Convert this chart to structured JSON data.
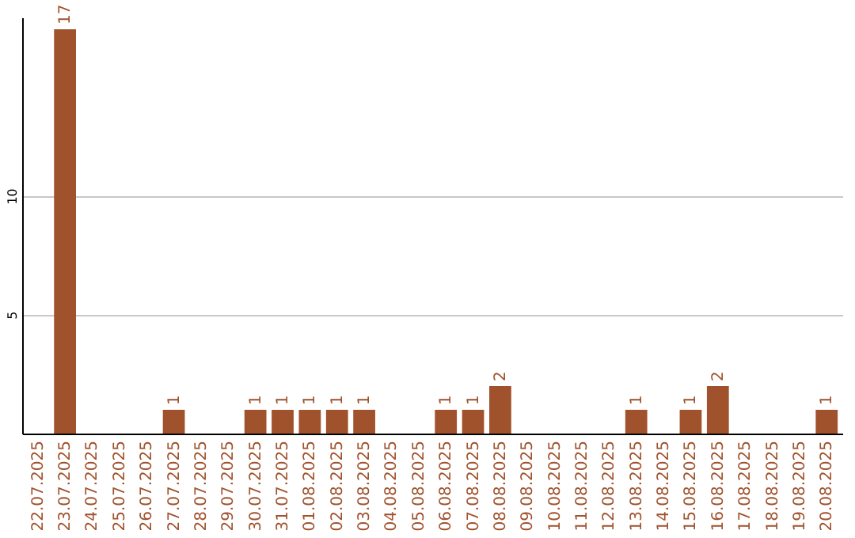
{
  "chart_data": {
    "type": "bar",
    "categories": [
      "22.07.2025",
      "23.07.2025",
      "24.07.2025",
      "25.07.2025",
      "26.07.2025",
      "27.07.2025",
      "28.07.2025",
      "29.07.2025",
      "30.07.2025",
      "31.07.2025",
      "01.08.2025",
      "02.08.2025",
      "03.08.2025",
      "04.08.2025",
      "05.08.2025",
      "06.08.2025",
      "07.08.2025",
      "08.08.2025",
      "09.08.2025",
      "10.08.2025",
      "11.08.2025",
      "12.08.2025",
      "13.08.2025",
      "14.08.2025",
      "15.08.2025",
      "16.08.2025",
      "17.08.2025",
      "18.08.2025",
      "19.08.2025",
      "20.08.2025"
    ],
    "values": [
      0,
      17,
      0,
      0,
      0,
      1,
      0,
      0,
      1,
      1,
      1,
      1,
      1,
      0,
      0,
      1,
      1,
      2,
      0,
      0,
      0,
      0,
      1,
      0,
      1,
      2,
      0,
      0,
      0,
      1
    ],
    "value_labels": [
      null,
      "17",
      null,
      null,
      null,
      "1",
      null,
      null,
      "1",
      "1",
      "1",
      "1",
      "1",
      null,
      null,
      "1",
      "1",
      "2",
      null,
      null,
      null,
      null,
      "1",
      null,
      "1",
      "2",
      null,
      null,
      null,
      "1"
    ],
    "color": "#a0522d",
    "ylim": [
      0,
      17.5
    ],
    "yticks": [
      5,
      10
    ],
    "grid": "y"
  }
}
